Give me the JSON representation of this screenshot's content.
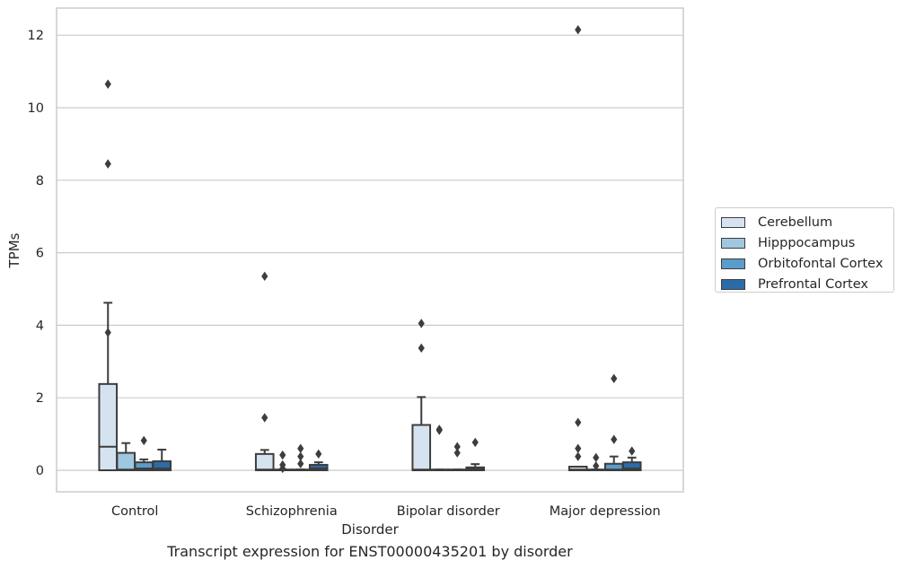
{
  "caption": "Transcript expression for ENST00000435201 by disorder",
  "chart_data": {
    "type": "box",
    "title": "",
    "xlabel": "Disorder",
    "ylabel": "TPMs",
    "ylim": [
      -0.6,
      12.75
    ],
    "yticks": [
      0,
      2,
      4,
      6,
      8,
      10,
      12
    ],
    "grid": true,
    "legend_position": "right",
    "categories": [
      "Control",
      "Schizophrenia",
      "Bipolar disorder",
      "Major depression"
    ],
    "series": [
      {
        "name": "Cerebellum",
        "color": "#d5e3f0",
        "boxes": [
          {
            "q1": 0,
            "median": 0.65,
            "q3": 2.38,
            "whisker_low": 0,
            "whisker_high": 4.62,
            "outliers": [
              3.8,
              8.45,
              10.65
            ]
          },
          {
            "q1": 0,
            "median": 0.02,
            "q3": 0.45,
            "whisker_low": 0,
            "whisker_high": 0.56,
            "outliers": [
              1.45,
              5.35
            ]
          },
          {
            "q1": 0,
            "median": 0.02,
            "q3": 1.25,
            "whisker_low": 0,
            "whisker_high": 2.02,
            "outliers": [
              3.37,
              4.05
            ]
          },
          {
            "q1": 0,
            "median": 0.02,
            "q3": 0.1,
            "whisker_low": 0,
            "whisker_high": 0.1,
            "outliers": [
              0.38,
              0.6,
              1.32,
              12.15
            ]
          }
        ]
      },
      {
        "name": "Hipppocampus",
        "color": "#9fc8e0",
        "boxes": [
          {
            "q1": 0,
            "median": 0.02,
            "q3": 0.48,
            "whisker_low": 0,
            "whisker_high": 0.75,
            "outliers": []
          },
          {
            "q1": 0,
            "median": 0,
            "q3": 0.02,
            "whisker_low": 0,
            "whisker_high": 0.02,
            "outliers": [
              0.05,
              0.15,
              0.42
            ]
          },
          {
            "q1": 0,
            "median": 0,
            "q3": 0.02,
            "whisker_low": 0,
            "whisker_high": 0.02,
            "outliers": [
              1.1,
              1.13
            ]
          },
          {
            "q1": 0,
            "median": 0,
            "q3": 0.02,
            "whisker_low": 0,
            "whisker_high": 0.02,
            "outliers": [
              0.12,
              0.35
            ]
          }
        ]
      },
      {
        "name": "Orbitofontal Cortex",
        "color": "#5a9ccb",
        "boxes": [
          {
            "q1": 0,
            "median": 0.05,
            "q3": 0.22,
            "whisker_low": 0,
            "whisker_high": 0.3,
            "outliers": [
              0.82
            ]
          },
          {
            "q1": 0,
            "median": 0,
            "q3": 0.02,
            "whisker_low": 0,
            "whisker_high": 0.02,
            "outliers": [
              0.18,
              0.38,
              0.6
            ]
          },
          {
            "q1": 0,
            "median": 0,
            "q3": 0.02,
            "whisker_low": 0,
            "whisker_high": 0.02,
            "outliers": [
              0.48,
              0.65
            ]
          },
          {
            "q1": 0,
            "median": 0.02,
            "q3": 0.18,
            "whisker_low": 0,
            "whisker_high": 0.38,
            "outliers": [
              0.85,
              2.53
            ]
          }
        ]
      },
      {
        "name": "Prefrontal Cortex",
        "color": "#2b6ca8",
        "boxes": [
          {
            "q1": 0,
            "median": 0.05,
            "q3": 0.25,
            "whisker_low": 0,
            "whisker_high": 0.57,
            "outliers": []
          },
          {
            "q1": 0,
            "median": 0.05,
            "q3": 0.15,
            "whisker_low": 0,
            "whisker_high": 0.22,
            "outliers": [
              0.45
            ]
          },
          {
            "q1": 0,
            "median": 0.03,
            "q3": 0.08,
            "whisker_low": 0,
            "whisker_high": 0.17,
            "outliers": [
              0.77
            ]
          },
          {
            "q1": 0,
            "median": 0.05,
            "q3": 0.22,
            "whisker_low": 0,
            "whisker_high": 0.35,
            "outliers": [
              0.53
            ]
          }
        ]
      }
    ]
  }
}
